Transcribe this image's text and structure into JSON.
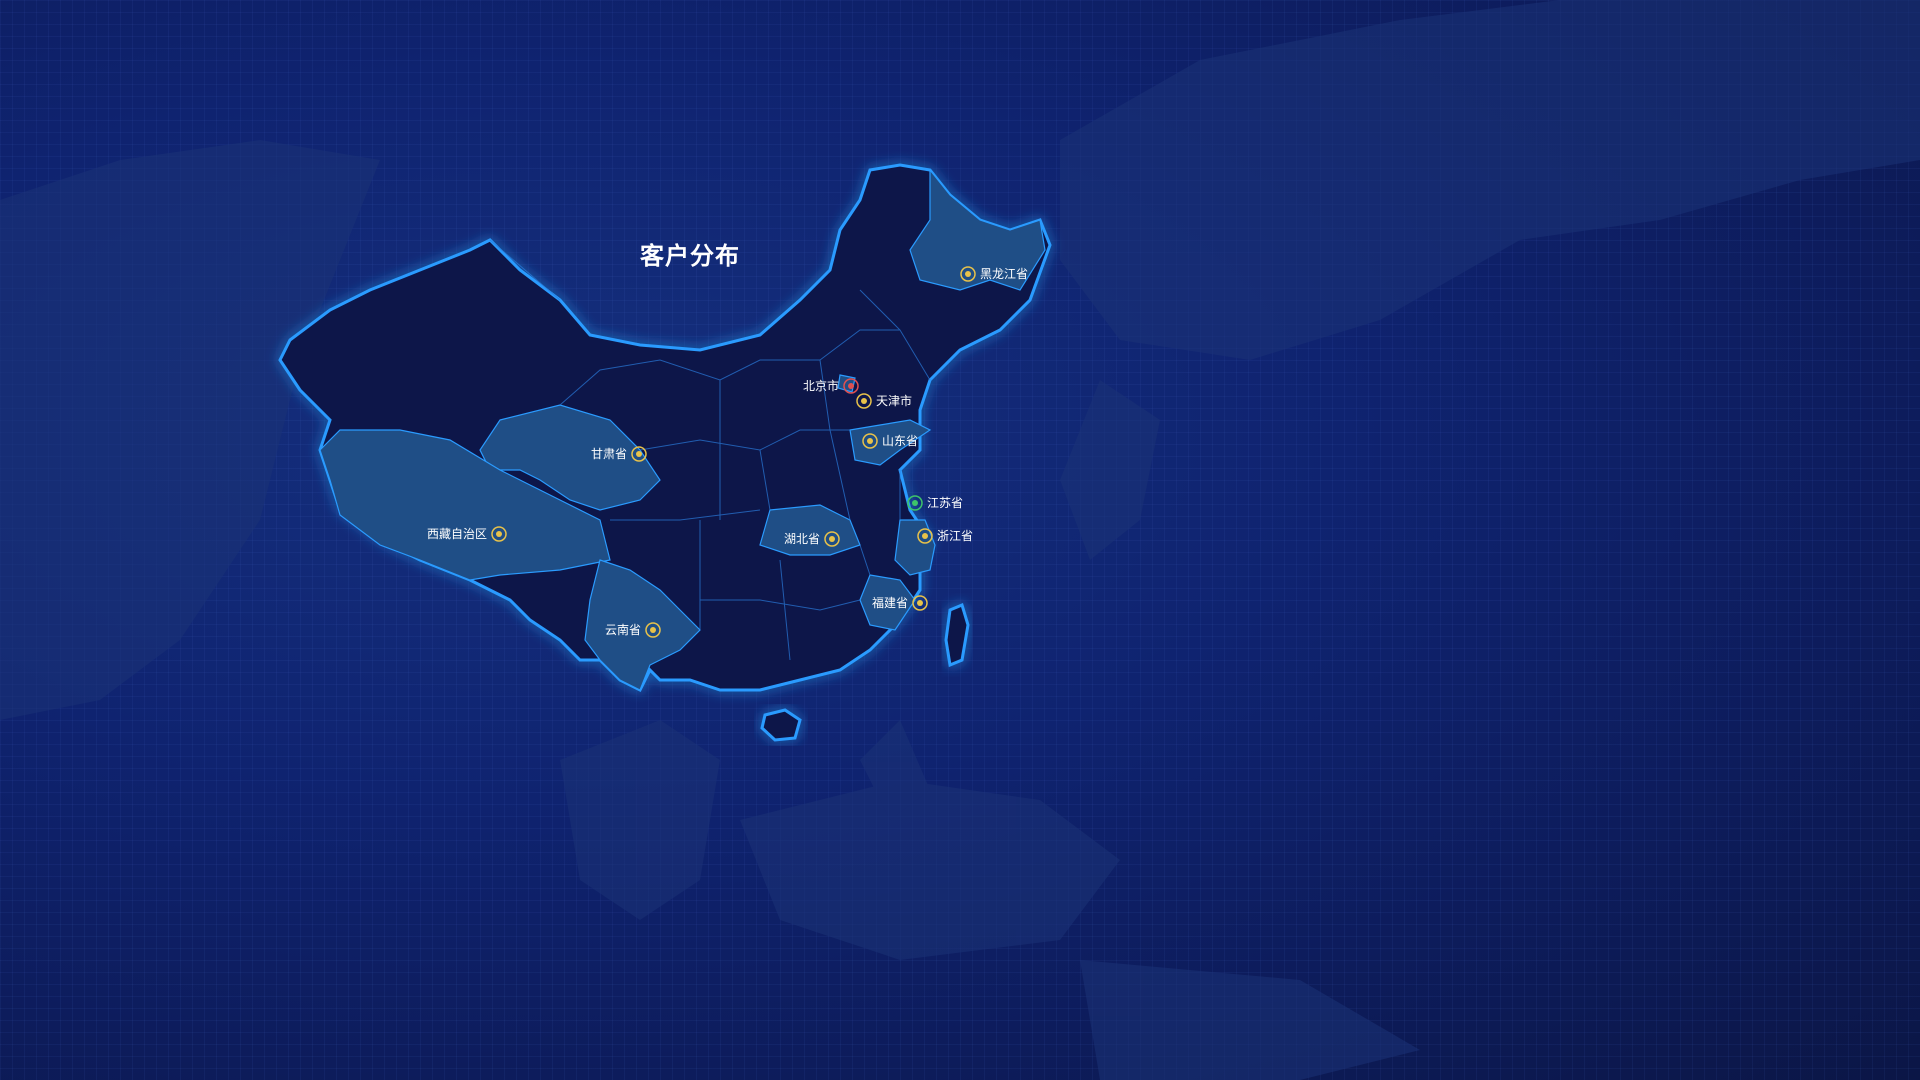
{
  "title": "客户分布",
  "colors": {
    "background": "#0f2370",
    "province_fill": "#0f1848",
    "province_highlight_fill": "#1f4e86",
    "border_glow": "#2a9bff",
    "marker_default": "#e8c24a",
    "marker_red": "#e05050",
    "marker_green": "#3ec46a"
  },
  "markers": [
    {
      "name": "北京市",
      "color": "red"
    },
    {
      "name": "天津市",
      "color": "default"
    },
    {
      "name": "黑龙江省",
      "color": "default"
    },
    {
      "name": "山东省",
      "color": "default"
    },
    {
      "name": "甘肃省",
      "color": "default"
    },
    {
      "name": "江苏省",
      "color": "green"
    },
    {
      "name": "浙江省",
      "color": "default"
    },
    {
      "name": "湖北省",
      "color": "default"
    },
    {
      "name": "西藏自治区",
      "color": "default"
    },
    {
      "name": "福建省",
      "color": "default"
    },
    {
      "name": "云南省",
      "color": "default"
    }
  ]
}
